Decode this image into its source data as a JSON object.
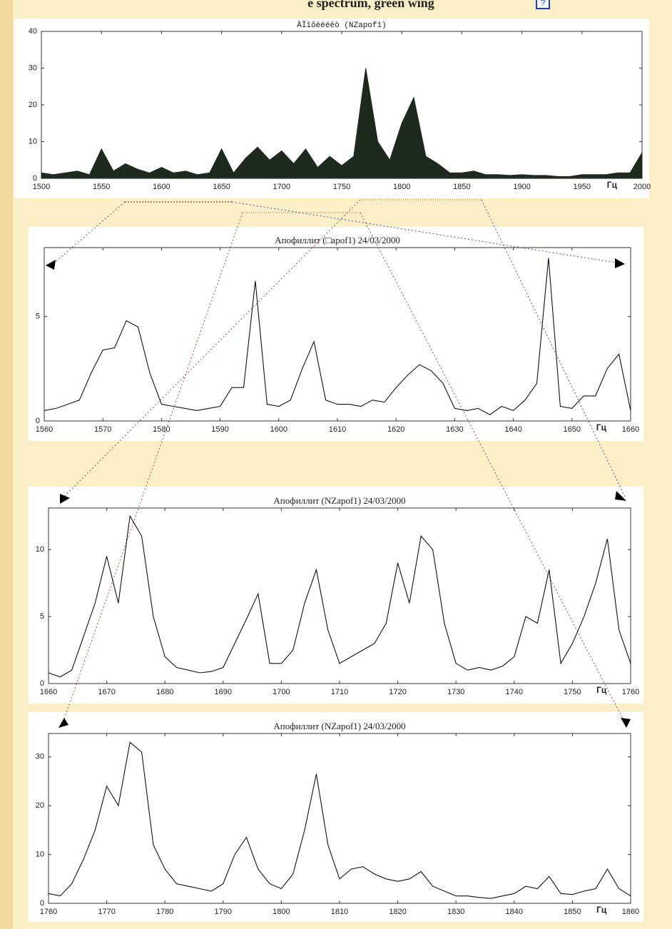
{
  "header": {
    "title": "e spectrum, green wing",
    "link": "?"
  },
  "chart_data": [
    {
      "type": "area",
      "title": "ÀÏîôèëëèò (NZapof1)",
      "x_label": "Гц",
      "color": "#1e2a1e",
      "x": [
        1500,
        1510,
        1520,
        1530,
        1540,
        1550,
        1560,
        1570,
        1580,
        1590,
        1600,
        1610,
        1620,
        1630,
        1640,
        1650,
        1660,
        1670,
        1680,
        1690,
        1700,
        1710,
        1720,
        1730,
        1740,
        1750,
        1760,
        1770,
        1780,
        1790,
        1800,
        1810,
        1820,
        1830,
        1840,
        1850,
        1860,
        1870,
        1880,
        1890,
        1900,
        1910,
        1920,
        1930,
        1940,
        1950,
        1960,
        1970,
        1980,
        1990,
        2000
      ],
      "values": [
        1.5,
        1.0,
        1.5,
        2.0,
        1.0,
        8.0,
        2.0,
        4.0,
        2.5,
        1.5,
        3.0,
        1.5,
        2.0,
        1.0,
        1.5,
        8.0,
        1.5,
        5.5,
        8.5,
        5.0,
        7.5,
        4.0,
        8.0,
        3.0,
        6.0,
        3.5,
        6.0,
        30.0,
        10.0,
        5.0,
        15.0,
        22.0,
        6.0,
        4.0,
        1.5,
        1.5,
        2.0,
        1.0,
        1.0,
        0.8,
        1.0,
        0.8,
        0.8,
        0.5,
        0.5,
        1.0,
        1.0,
        1.0,
        1.5,
        1.5,
        7.0
      ],
      "xlim": [
        1500,
        2000
      ],
      "ylim": [
        0,
        40
      ],
      "xticks": [
        1500,
        1550,
        1600,
        1650,
        1700,
        1750,
        1800,
        1850,
        1900,
        1950,
        2000
      ],
      "yticks": [
        0,
        10,
        20,
        30,
        40
      ]
    },
    {
      "type": "line",
      "title": "Апофиллит (□apof1) 24/03/2000",
      "x_label": "Гц",
      "color": "#111111",
      "x": [
        1560,
        1562,
        1564,
        1566,
        1568,
        1570,
        1572,
        1574,
        1576,
        1578,
        1580,
        1582,
        1584,
        1586,
        1588,
        1590,
        1592,
        1594,
        1596,
        1598,
        1600,
        1602,
        1604,
        1606,
        1608,
        1610,
        1612,
        1614,
        1616,
        1618,
        1620,
        1622,
        1624,
        1626,
        1628,
        1630,
        1632,
        1634,
        1636,
        1638,
        1640,
        1642,
        1644,
        1646,
        1648,
        1650,
        1652,
        1654,
        1656,
        1658,
        1660
      ],
      "values": [
        0.5,
        0.6,
        0.8,
        1.0,
        2.3,
        3.4,
        3.5,
        4.8,
        4.5,
        2.3,
        0.8,
        0.7,
        0.6,
        0.5,
        0.6,
        0.7,
        1.6,
        1.6,
        6.7,
        0.8,
        0.7,
        1.0,
        2.5,
        3.8,
        1.0,
        0.8,
        0.8,
        0.7,
        1.0,
        0.9,
        1.6,
        2.2,
        2.7,
        2.4,
        1.8,
        0.6,
        0.5,
        0.6,
        0.3,
        0.7,
        0.5,
        1.0,
        1.8,
        7.8,
        0.7,
        0.6,
        1.2,
        1.2,
        2.5,
        3.2,
        0.5
      ],
      "xlim": [
        1560,
        1660
      ],
      "ylim": [
        0,
        8.3
      ],
      "xticks": [
        1560,
        1570,
        1580,
        1590,
        1600,
        1610,
        1620,
        1630,
        1640,
        1650,
        1660
      ],
      "yticks": [
        0,
        5
      ]
    },
    {
      "type": "line",
      "title": "Апофиллит (NZapof1) 24/03/2000",
      "x_label": "Гц",
      "color": "#111111",
      "x": [
        1660,
        1662,
        1664,
        1666,
        1668,
        1670,
        1672,
        1674,
        1676,
        1678,
        1680,
        1682,
        1684,
        1686,
        1688,
        1690,
        1692,
        1694,
        1696,
        1698,
        1700,
        1702,
        1704,
        1706,
        1708,
        1710,
        1712,
        1714,
        1716,
        1718,
        1720,
        1722,
        1724,
        1726,
        1728,
        1730,
        1732,
        1734,
        1736,
        1738,
        1740,
        1742,
        1744,
        1746,
        1748,
        1750,
        1752,
        1754,
        1756,
        1758,
        1760
      ],
      "values": [
        0.8,
        0.5,
        1.0,
        3.5,
        6.0,
        9.5,
        6.0,
        12.5,
        11.0,
        5.0,
        2.0,
        1.2,
        1.0,
        0.8,
        0.9,
        1.2,
        3.0,
        4.8,
        6.7,
        1.5,
        1.5,
        2.5,
        6.0,
        8.5,
        4.0,
        1.5,
        2.0,
        2.5,
        3.0,
        4.5,
        9.0,
        6.0,
        11.0,
        10.0,
        4.5,
        1.5,
        1.0,
        1.2,
        1.0,
        1.3,
        2.0,
        5.0,
        4.5,
        8.5,
        1.5,
        3.0,
        5.0,
        7.5,
        10.8,
        4.0,
        1.5
      ],
      "xlim": [
        1660,
        1760
      ],
      "ylim": [
        0,
        13.1
      ],
      "xticks": [
        1660,
        1670,
        1680,
        1690,
        1700,
        1710,
        1720,
        1730,
        1740,
        1750,
        1760
      ],
      "yticks": [
        0,
        5,
        10
      ]
    },
    {
      "type": "line",
      "title": "Апофиллит (NZapof1) 24/03/2000",
      "x_label": "Гц",
      "color": "#111111",
      "x": [
        1760,
        1762,
        1764,
        1766,
        1768,
        1770,
        1772,
        1774,
        1776,
        1778,
        1780,
        1782,
        1784,
        1786,
        1788,
        1790,
        1792,
        1794,
        1796,
        1798,
        1800,
        1802,
        1804,
        1806,
        1808,
        1810,
        1812,
        1814,
        1816,
        1818,
        1820,
        1822,
        1824,
        1826,
        1828,
        1830,
        1832,
        1834,
        1836,
        1838,
        1840,
        1842,
        1844,
        1846,
        1848,
        1850,
        1852,
        1854,
        1856,
        1858,
        1860
      ],
      "values": [
        2,
        1.5,
        4,
        9,
        15,
        24,
        20,
        33,
        31,
        12,
        7,
        4,
        3.5,
        3,
        2.5,
        4,
        10,
        13.5,
        7,
        4,
        3,
        6,
        15,
        26.5,
        12,
        5,
        7,
        7.5,
        6,
        5,
        4.5,
        5,
        6.5,
        3.5,
        2.5,
        1.5,
        1.5,
        1.2,
        1.0,
        1.5,
        2.0,
        3.5,
        3.0,
        5.5,
        2.0,
        1.8,
        2.5,
        3.0,
        7.0,
        3.0,
        1.5
      ],
      "xlim": [
        1760,
        1860
      ],
      "ylim": [
        0,
        34.8
      ],
      "xticks": [
        1760,
        1770,
        1780,
        1790,
        1800,
        1810,
        1820,
        1830,
        1840,
        1850,
        1860
      ],
      "yticks": [
        0,
        10,
        20,
        30
      ]
    }
  ]
}
